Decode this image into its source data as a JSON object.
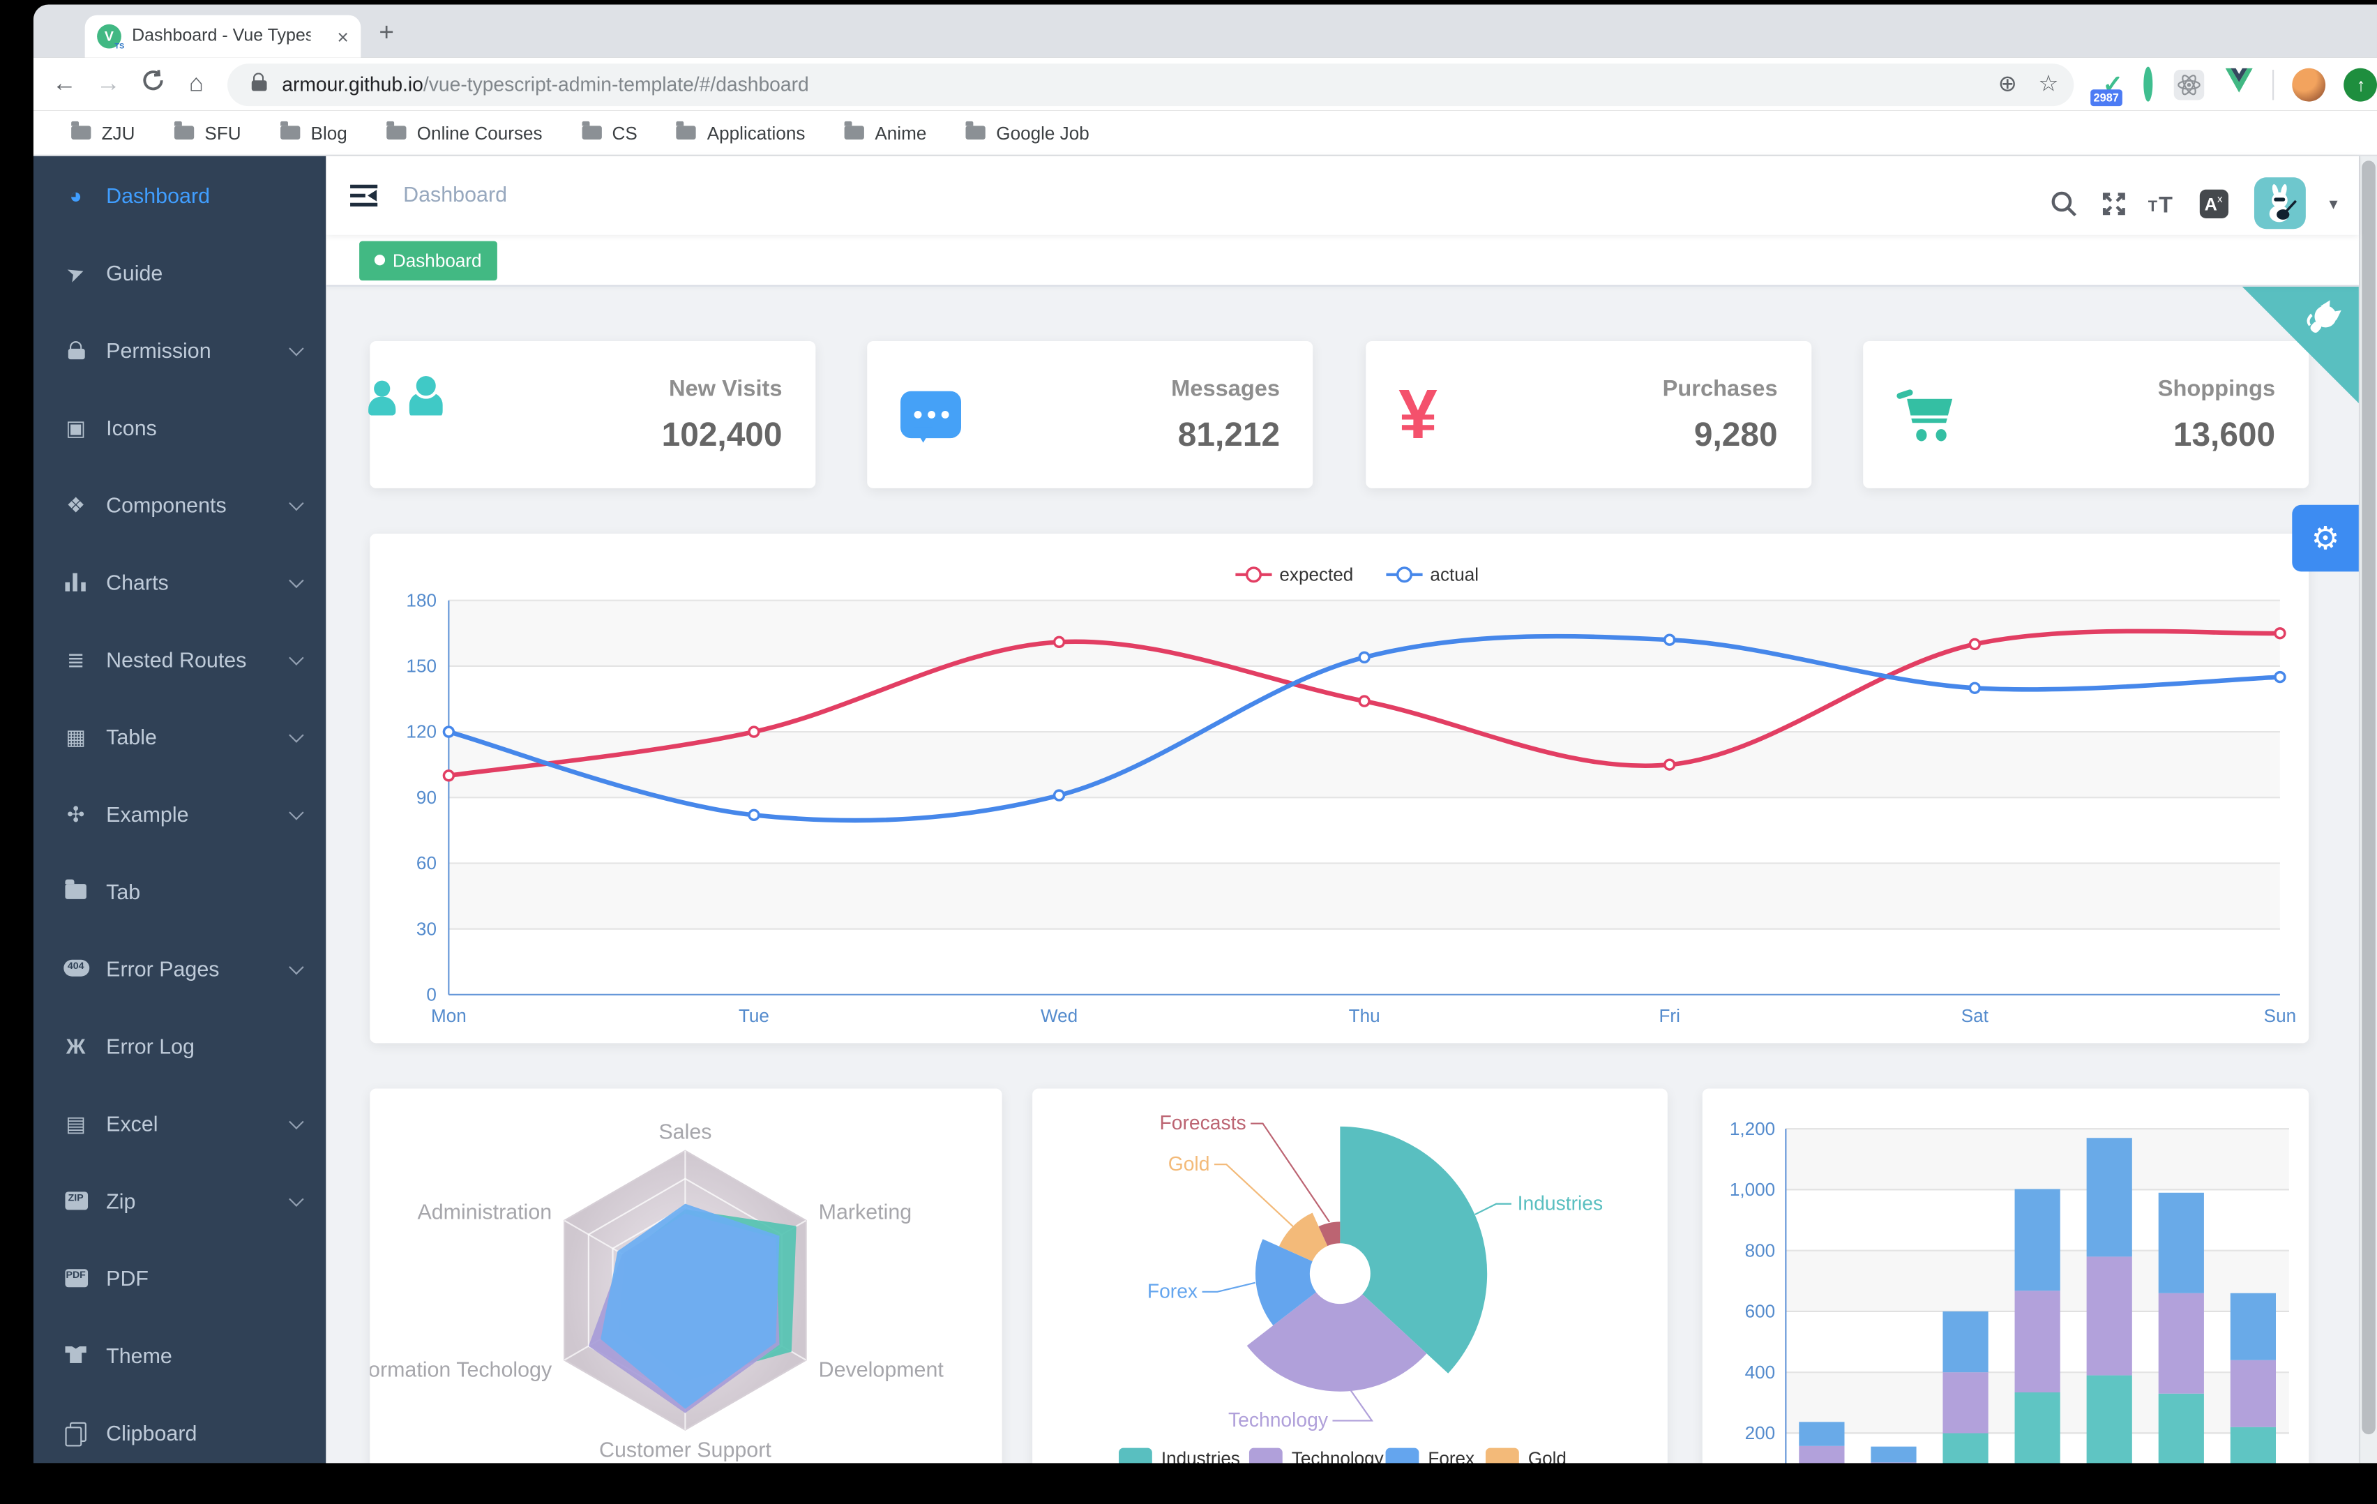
{
  "browser": {
    "tab_title": "Dashboard - Vue Typescript Ad",
    "tab_close": "×",
    "new_tab": "+",
    "favicon_letter": "V",
    "favicon_sub": "TS",
    "back": "←",
    "forward": "→",
    "home": "⌂",
    "url_domain": "armour.github.io",
    "url_path": "/vue-typescript-admin-template/#/dashboard",
    "plus_circle": "⊕",
    "star": "☆",
    "extension_badge": "2987",
    "update_arrow": "↑",
    "bookmarks": [
      "ZJU",
      "SFU",
      "Blog",
      "Online Courses",
      "CS",
      "Applications",
      "Anime",
      "Google Job"
    ]
  },
  "sidebar": {
    "items": [
      {
        "label": "Dashboard",
        "icon": "dashboard-icon",
        "active": true,
        "chevron": false
      },
      {
        "label": "Guide",
        "icon": "guide-icon",
        "chevron": false
      },
      {
        "label": "Permission",
        "icon": "lock-icon",
        "chevron": true
      },
      {
        "label": "Icons",
        "icon": "icons-icon",
        "chevron": false
      },
      {
        "label": "Components",
        "icon": "components-icon",
        "chevron": true
      },
      {
        "label": "Charts",
        "icon": "charts-icon",
        "chevron": true
      },
      {
        "label": "Nested Routes",
        "icon": "nested-routes-icon",
        "chevron": true
      },
      {
        "label": "Table",
        "icon": "table-icon",
        "chevron": true
      },
      {
        "label": "Example",
        "icon": "example-icon",
        "chevron": true
      },
      {
        "label": "Tab",
        "icon": "folder-icon",
        "chevron": false
      },
      {
        "label": "Error Pages",
        "icon": "error-pages-icon",
        "chevron": true
      },
      {
        "label": "Error Log",
        "icon": "bug-icon",
        "chevron": false
      },
      {
        "label": "Excel",
        "icon": "excel-icon",
        "chevron": true
      },
      {
        "label": "Zip",
        "icon": "zip-icon",
        "chevron": true
      },
      {
        "label": "PDF",
        "icon": "pdf-icon",
        "chevron": false
      },
      {
        "label": "Theme",
        "icon": "theme-icon",
        "chevron": false
      },
      {
        "label": "Clipboard",
        "icon": "clipboard-icon",
        "chevron": false
      }
    ]
  },
  "header": {
    "breadcrumb": "Dashboard"
  },
  "tags": [
    {
      "label": "Dashboard",
      "active": true
    }
  ],
  "stats": [
    {
      "label": "New Visits",
      "value": "102,400",
      "icon": "peoples-icon",
      "color": "#40c9c6"
    },
    {
      "label": "Messages",
      "value": "81,212",
      "icon": "message-icon",
      "color": "#45a1f7"
    },
    {
      "label": "Purchases",
      "value": "9,280",
      "icon": "money-icon",
      "color": "#f4516c"
    },
    {
      "label": "Shoppings",
      "value": "13,600",
      "icon": "shopping-cart-icon",
      "color": "#34bfa3"
    }
  ],
  "chart_data": [
    {
      "type": "line",
      "categories": [
        "Mon",
        "Tue",
        "Wed",
        "Thu",
        "Fri",
        "Sat",
        "Sun"
      ],
      "series": [
        {
          "name": "expected",
          "color": "#e23e63",
          "values": [
            100,
            120,
            161,
            134,
            105,
            160,
            165
          ]
        },
        {
          "name": "actual",
          "color": "#4687ea",
          "values": [
            120,
            82,
            91,
            154,
            162,
            140,
            145
          ]
        }
      ],
      "ylim": [
        0,
        180
      ],
      "ytick": 30,
      "legend_position": "top",
      "grid": true
    },
    {
      "type": "radar",
      "indicators": [
        "Sales",
        "Marketing",
        "Development",
        "Customer Support",
        "Information Techology",
        "Administration"
      ],
      "max": 100,
      "series": [
        {
          "color": "#55c3b2",
          "values": [
            58,
            92,
            88,
            65,
            55,
            50
          ]
        },
        {
          "color": "#a79cd8",
          "values": [
            55,
            75,
            78,
            88,
            80,
            52
          ]
        },
        {
          "color": "#6aaef2",
          "values": [
            62,
            78,
            75,
            85,
            70,
            56
          ]
        }
      ]
    },
    {
      "type": "pie",
      "labels": [
        "Industries",
        "Technology",
        "Forex",
        "Gold",
        "Forecasts"
      ],
      "values": [
        320,
        240,
        149,
        100,
        59
      ],
      "colors": [
        "#59bfc0",
        "#b0a0da",
        "#64a5ee",
        "#f3ba79",
        "#bc6472"
      ],
      "legend_visible": [
        "Industries",
        "Technology",
        "Forex",
        "Gold"
      ]
    },
    {
      "type": "bar",
      "ylim": [
        0,
        1200
      ],
      "ytick": 200,
      "series": [
        {
          "color": "#5fc5c3",
          "values": [
            79,
            52,
            200,
            334,
            390,
            330,
            220
          ]
        },
        {
          "color": "#b2a1db",
          "values": [
            79,
            52,
            200,
            334,
            390,
            330,
            220
          ]
        },
        {
          "color": "#69aae8",
          "values": [
            79,
            52,
            200,
            334,
            390,
            330,
            220
          ]
        }
      ]
    }
  ],
  "misc": {
    "gear": "⚙",
    "caret": "▾",
    "ext_check": "✓"
  }
}
